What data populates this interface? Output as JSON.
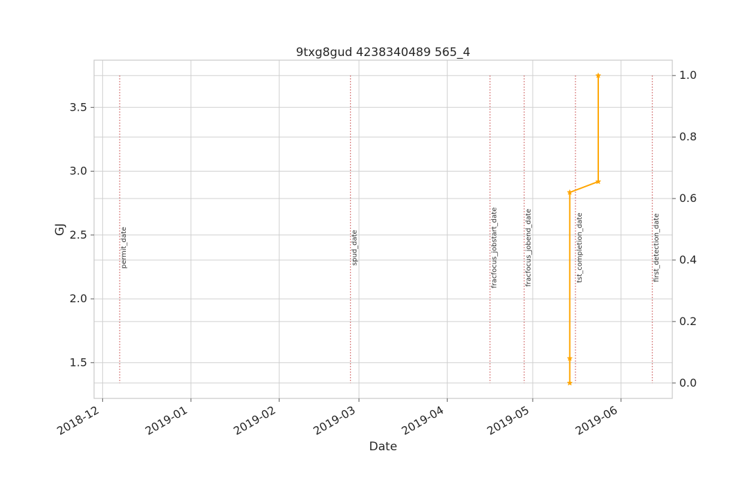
{
  "chart_data": {
    "type": "line",
    "title": "9txg8gud 4238340489 565_4",
    "xlabel": "Date",
    "ylabel_left": "GJ",
    "ylabel_left_color": "#1f77b4",
    "x_ticks": [
      "2018-12",
      "2019-01",
      "2019-02",
      "2019-03",
      "2019-04",
      "2019-05",
      "2019-06"
    ],
    "xlim": [
      "2018-11-28",
      "2019-06-19"
    ],
    "y_left_ticks": [
      "1.5",
      "2.0",
      "2.5",
      "3.0",
      "3.5"
    ],
    "y_left_lim": [
      1.22,
      3.87
    ],
    "y_right_ticks": [
      "0.0",
      "0.2",
      "0.4",
      "0.6",
      "0.8",
      "1.0"
    ],
    "y_right_lim": [
      -0.05,
      1.05
    ],
    "grid": true,
    "series": [
      {
        "axis": "right",
        "color": "#ffa500",
        "marker": "star",
        "points": [
          {
            "x": "2019-05-14",
            "y": 0.0
          },
          {
            "x": "2019-05-14",
            "y": 0.08
          },
          {
            "x": "2019-05-14",
            "y": 0.62
          },
          {
            "x": "2019-05-24",
            "y": 0.655
          },
          {
            "x": "2019-05-24",
            "y": 1.0
          }
        ]
      }
    ],
    "event_lines": [
      {
        "label": "permit_date",
        "date": "2018-12-07",
        "color": "#cd5c5c"
      },
      {
        "label": "spud_date",
        "date": "2019-02-26",
        "color": "#cd5c5c"
      },
      {
        "label": "fracfocus_jobstart_date",
        "date": "2019-04-16",
        "color": "#cd5c5c"
      },
      {
        "label": "fracfocus_jobend_date",
        "date": "2019-04-28",
        "color": "#cd5c5c"
      },
      {
        "label": "tst_completion_date",
        "date": "2019-05-16",
        "color": "#cd5c5c"
      },
      {
        "label": "first_detection_date",
        "date": "2019-06-12",
        "color": "#cd5c5c"
      }
    ]
  }
}
